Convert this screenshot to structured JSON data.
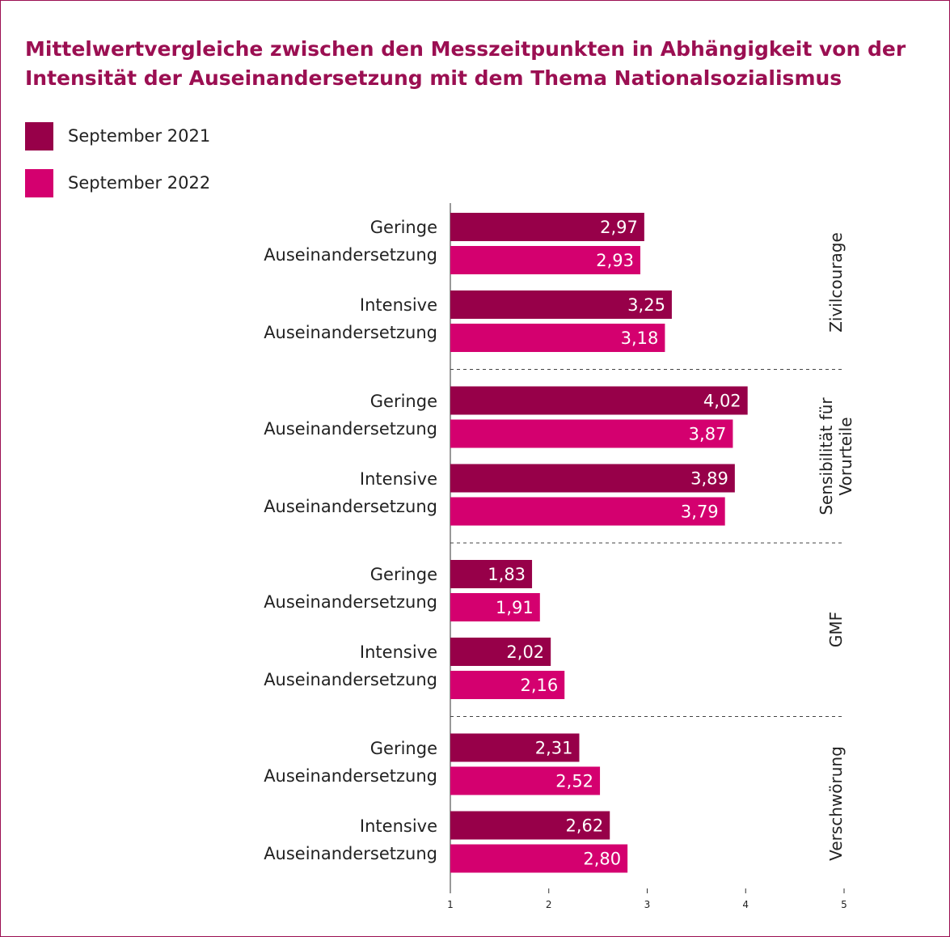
{
  "chart_data": {
    "type": "bar",
    "orientation": "horizontal",
    "title": "Mittelwertvergleiche zwischen den Messzeitpunkten in Abhängigkeit von der Intensität der Auseinandersetzung mit dem Thema Nationalsozialismus",
    "groups": [
      "Zivilcourage",
      "Sensibilität für Vorurteile",
      "GMF",
      "Verschwörung"
    ],
    "categories": [
      "Geringe Auseinandersetzung",
      "Intensive Auseinandersetzung",
      "Geringe Auseinandersetzung",
      "Intensive Auseinandersetzung",
      "Geringe Auseinandersetzung",
      "Intensive Auseinandersetzung",
      "Geringe Auseinandersetzung",
      "Intensive Auseinandersetzung"
    ],
    "series": [
      {
        "name": "September 2021",
        "color": "#970049",
        "values": [
          2.97,
          3.25,
          4.02,
          3.89,
          1.83,
          2.02,
          2.31,
          2.62
        ],
        "value_labels": [
          "2,97",
          "3,25",
          "4,02",
          "3,89",
          "1,83",
          "2,02",
          "2,31",
          "2,62"
        ]
      },
      {
        "name": "September 2022",
        "color": "#d4006f",
        "values": [
          2.93,
          3.18,
          3.87,
          3.79,
          1.91,
          2.16,
          2.52,
          2.8
        ],
        "value_labels": [
          "2,93",
          "3,18",
          "3,87",
          "3,79",
          "1,91",
          "2,16",
          "2,52",
          "2,80"
        ]
      }
    ],
    "xlim": [
      1,
      5
    ],
    "xticks": [
      1,
      2,
      3,
      4,
      5
    ]
  }
}
